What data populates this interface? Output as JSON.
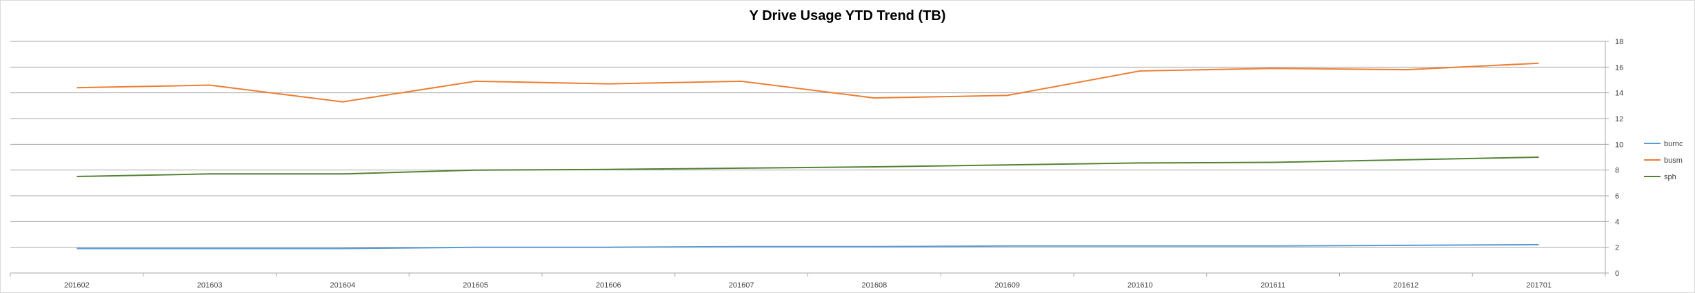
{
  "chart_data": {
    "type": "line",
    "title": "Y Drive Usage YTD Trend (TB)",
    "categories": [
      "201602",
      "201603",
      "201604",
      "201605",
      "201606",
      "201607",
      "201608",
      "201609",
      "201610",
      "201611",
      "201612",
      "201701"
    ],
    "series": [
      {
        "name": "burnc",
        "color": "#5b9bd5",
        "values": [
          1.9,
          1.9,
          1.9,
          2.0,
          2.0,
          2.05,
          2.05,
          2.1,
          2.1,
          2.1,
          2.15,
          2.2
        ]
      },
      {
        "name": "busm",
        "color": "#ed7d31",
        "values": [
          14.4,
          14.6,
          13.3,
          14.9,
          14.7,
          14.9,
          13.6,
          13.8,
          15.7,
          15.9,
          15.8,
          16.3
        ]
      },
      {
        "name": "sph",
        "color": "#548235",
        "values": [
          7.5,
          7.7,
          7.7,
          8.0,
          8.05,
          8.15,
          8.25,
          8.4,
          8.55,
          8.6,
          8.8,
          9.0
        ]
      }
    ],
    "y_ticks": [
      0,
      2,
      4,
      6,
      8,
      10,
      12,
      14,
      16,
      18
    ],
    "ylim": [
      0,
      18
    ],
    "grid": true,
    "legend_position": "right"
  }
}
